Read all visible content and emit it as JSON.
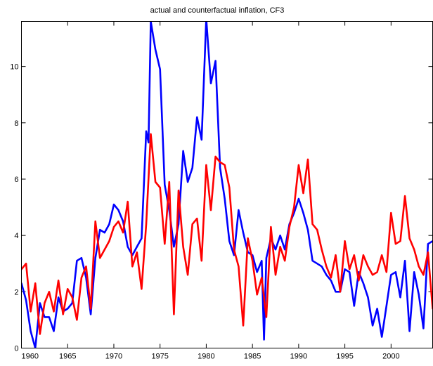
{
  "chart_data": {
    "type": "line",
    "title": "actual and counterfactual inflation, CF3",
    "xlabel": "",
    "ylabel": "",
    "xlim": [
      1960,
      2004.5
    ],
    "ylim": [
      0,
      11.6
    ],
    "x_ticks": [
      1960,
      1965,
      1970,
      1975,
      1980,
      1985,
      1990,
      1995,
      2000
    ],
    "y_ticks": [
      0,
      2,
      4,
      6,
      8,
      10
    ],
    "x_tick_labels": [
      "1960",
      "1965",
      "1970",
      "1975",
      "1980",
      "1985",
      "1990",
      "1995",
      "2000"
    ],
    "y_tick_labels": [
      "0",
      "2",
      "4",
      "6",
      "8",
      "10"
    ],
    "grid": false,
    "series": [
      {
        "color": "#0000ff",
        "x": [
          1960.0,
          1960.5,
          1961.0,
          1961.5,
          1962.0,
          1962.5,
          1963.0,
          1963.5,
          1964.0,
          1964.5,
          1965.0,
          1965.5,
          1966.0,
          1966.5,
          1967.0,
          1967.5,
          1968.0,
          1968.5,
          1969.0,
          1969.5,
          1970.0,
          1970.5,
          1971.0,
          1971.5,
          1972.0,
          1972.5,
          1973.0,
          1973.5,
          1973.75,
          1974.0,
          1974.5,
          1975.0,
          1975.5,
          1976.0,
          1976.5,
          1977.0,
          1977.5,
          1978.0,
          1978.5,
          1979.0,
          1979.5,
          1980.0,
          1980.5,
          1981.0,
          1981.5,
          1982.0,
          1982.5,
          1983.0,
          1983.5,
          1984.0,
          1984.5,
          1985.0,
          1985.5,
          1986.0,
          1986.25,
          1986.5,
          1987.0,
          1987.5,
          1988.0,
          1988.5,
          1989.0,
          1989.5,
          1990.0,
          1990.5,
          1991.0,
          1991.5,
          1992.0,
          1992.5,
          1993.0,
          1993.5,
          1994.0,
          1994.5,
          1995.0,
          1995.5,
          1996.0,
          1996.5,
          1997.0,
          1997.5,
          1998.0,
          1998.5,
          1999.0,
          1999.5,
          2000.0,
          2000.5,
          2001.0,
          2001.5,
          2002.0,
          2002.5,
          2003.0,
          2003.5,
          2004.0,
          2004.5
        ],
        "values": [
          2.3,
          1.7,
          0.6,
          0.0,
          1.6,
          1.1,
          1.1,
          0.6,
          1.8,
          1.3,
          1.4,
          1.6,
          3.1,
          3.2,
          2.5,
          1.2,
          3.2,
          4.2,
          4.1,
          4.4,
          5.1,
          4.9,
          4.5,
          3.6,
          3.3,
          3.6,
          3.9,
          7.7,
          7.3,
          11.6,
          10.6,
          9.9,
          5.8,
          4.9,
          3.6,
          4.4,
          7.0,
          5.9,
          6.4,
          8.2,
          7.4,
          11.7,
          9.4,
          10.2,
          6.4,
          5.3,
          3.8,
          3.3,
          4.9,
          4.1,
          3.4,
          3.3,
          2.7,
          3.1,
          0.3,
          3.2,
          3.9,
          3.5,
          4.0,
          3.5,
          4.4,
          4.8,
          5.3,
          4.8,
          4.2,
          3.1,
          3.0,
          2.9,
          2.6,
          2.4,
          2.0,
          2.0,
          2.8,
          2.7,
          1.5,
          2.7,
          2.3,
          1.8,
          0.8,
          1.4,
          0.4,
          1.5,
          2.6,
          2.7,
          1.8,
          3.1,
          0.6,
          2.7,
          1.9,
          0.7,
          3.7,
          3.8
        ]
      },
      {
        "color": "#ff0000",
        "x": [
          1960.0,
          1960.5,
          1961.0,
          1961.5,
          1962.0,
          1962.5,
          1963.0,
          1963.5,
          1964.0,
          1964.5,
          1965.0,
          1965.5,
          1966.0,
          1966.5,
          1967.0,
          1967.5,
          1968.0,
          1968.5,
          1969.0,
          1969.5,
          1970.0,
          1970.5,
          1971.0,
          1971.5,
          1972.0,
          1972.5,
          1973.0,
          1973.5,
          1974.0,
          1974.5,
          1975.0,
          1975.5,
          1976.0,
          1976.5,
          1977.0,
          1977.5,
          1978.0,
          1978.5,
          1979.0,
          1979.5,
          1980.0,
          1980.5,
          1981.0,
          1981.5,
          1982.0,
          1982.5,
          1983.0,
          1983.5,
          1984.0,
          1984.5,
          1985.0,
          1985.5,
          1986.0,
          1986.5,
          1987.0,
          1987.5,
          1988.0,
          1988.5,
          1989.0,
          1989.5,
          1990.0,
          1990.5,
          1991.0,
          1991.5,
          1992.0,
          1992.5,
          1993.0,
          1993.5,
          1994.0,
          1994.5,
          1995.0,
          1995.5,
          1996.0,
          1996.5,
          1997.0,
          1997.5,
          1998.0,
          1998.5,
          1999.0,
          1999.5,
          2000.0,
          2000.5,
          2001.0,
          2001.5,
          2002.0,
          2002.5,
          2003.0,
          2003.5,
          2004.0,
          2004.5
        ],
        "values": [
          2.8,
          3.0,
          1.3,
          2.3,
          0.5,
          1.6,
          2.0,
          1.3,
          2.4,
          1.2,
          2.1,
          1.8,
          1.0,
          2.5,
          2.9,
          1.4,
          4.5,
          3.2,
          3.5,
          3.8,
          4.3,
          4.5,
          4.1,
          5.2,
          2.9,
          3.4,
          2.1,
          4.4,
          7.6,
          5.9,
          5.7,
          3.7,
          5.9,
          1.2,
          5.6,
          3.6,
          2.6,
          4.4,
          4.6,
          3.1,
          6.5,
          4.9,
          6.8,
          6.6,
          6.5,
          5.7,
          3.5,
          2.9,
          0.8,
          3.9,
          3.1,
          1.9,
          2.5,
          1.1,
          4.3,
          2.6,
          3.6,
          3.1,
          4.3,
          5.0,
          6.5,
          5.5,
          6.7,
          4.4,
          4.2,
          3.5,
          2.9,
          2.5,
          3.3,
          2.0,
          3.8,
          2.8,
          3.3,
          2.4,
          3.3,
          2.9,
          2.6,
          2.7,
          3.3,
          2.7,
          4.8,
          3.7,
          3.8,
          5.4,
          3.9,
          3.5,
          2.9,
          2.6,
          3.4,
          1.4
        ]
      }
    ]
  }
}
